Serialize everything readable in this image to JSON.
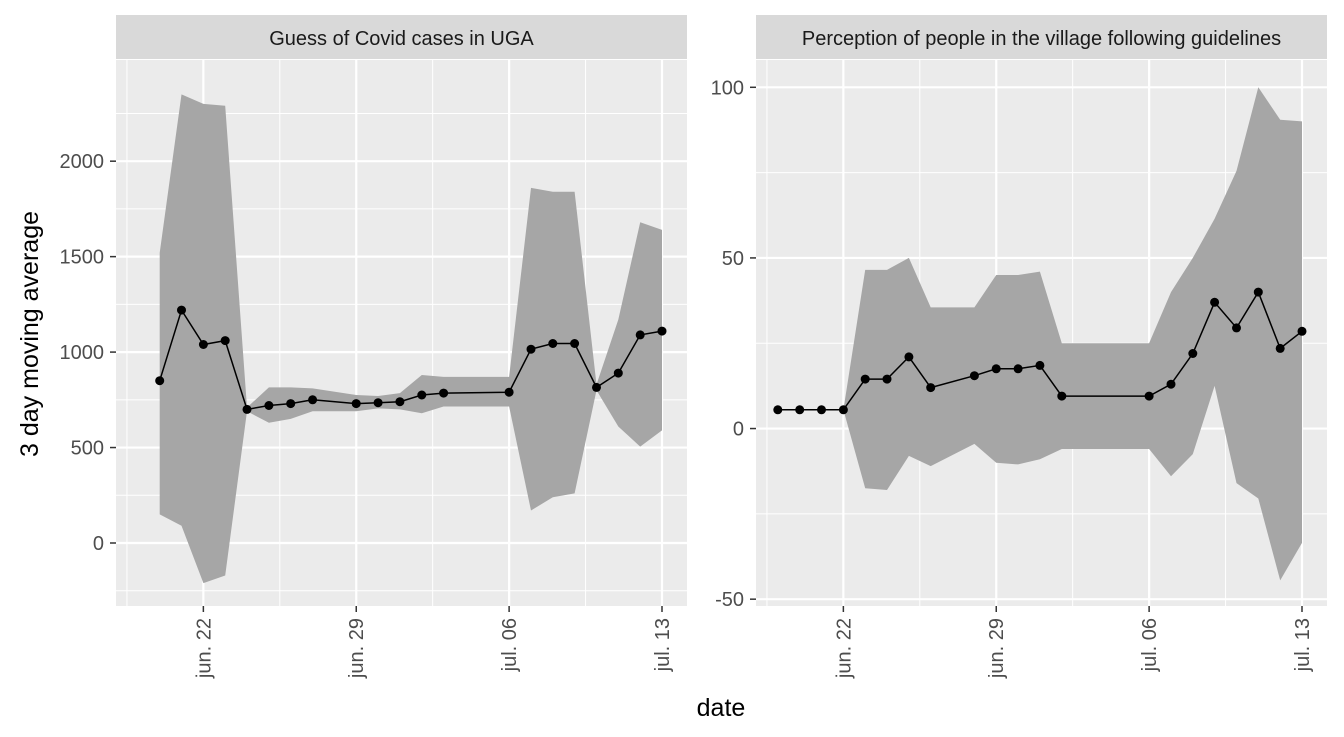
{
  "figure": {
    "xlabel": "date",
    "ylabel": "3 day moving average"
  },
  "colors": {
    "panel_bg": "#EBEBEB",
    "strip_bg": "#D9D9D9",
    "grid": "#FFFFFF",
    "ribbon": "#A6A6A6",
    "line": "#000000"
  },
  "chart_data": [
    {
      "type": "line",
      "title": "Guess of Covid cases in UGA",
      "xlabel": "date",
      "ylabel": "3 day moving average",
      "ribbon": true,
      "grid": true,
      "xlim": [
        "2020-06-18",
        "2020-07-13"
      ],
      "ylim": [
        -330,
        2530
      ],
      "x_ticks": [
        "2020-06-22",
        "2020-06-29",
        "2020-07-06",
        "2020-07-13"
      ],
      "x_tick_labels": [
        "jun. 22",
        "jun. 29",
        "jul. 06",
        "jul. 13"
      ],
      "y_ticks": [
        0,
        500,
        1000,
        1500,
        2000
      ],
      "y_tick_labels": [
        "0",
        "500",
        "1000",
        "1500",
        "2000"
      ],
      "series": [
        {
          "x": [
            "2020-06-20",
            "2020-06-21",
            "2020-06-22",
            "2020-06-23",
            "2020-06-24",
            "2020-06-25",
            "2020-06-26",
            "2020-06-27",
            "2020-06-29",
            "2020-06-30",
            "2020-07-01",
            "2020-07-02",
            "2020-07-03",
            "2020-07-06",
            "2020-07-07",
            "2020-07-08",
            "2020-07-09",
            "2020-07-10",
            "2020-07-11",
            "2020-07-12",
            "2020-07-13"
          ],
          "y": [
            850,
            1220,
            1040,
            1060,
            700,
            720,
            730,
            750,
            730,
            735,
            740,
            775,
            785,
            790,
            1015,
            1045,
            1045,
            815,
            890,
            1090,
            1110
          ],
          "lower": [
            150,
            90,
            -210,
            -170,
            690,
            630,
            650,
            690,
            690,
            705,
            700,
            680,
            715,
            715,
            170,
            240,
            260,
            800,
            610,
            505,
            590
          ],
          "upper": [
            1520,
            2350,
            2300,
            2290,
            710,
            815,
            815,
            810,
            775,
            770,
            785,
            880,
            870,
            870,
            1860,
            1840,
            1840,
            830,
            1170,
            1680,
            1640
          ]
        }
      ]
    },
    {
      "type": "line",
      "title": "Perception of people in the village following guidelines",
      "xlabel": "date",
      "ylabel": "3 day moving average",
      "ribbon": true,
      "grid": true,
      "xlim": [
        "2020-06-18",
        "2020-07-13"
      ],
      "ylim": [
        -52,
        108
      ],
      "x_ticks": [
        "2020-06-22",
        "2020-06-29",
        "2020-07-06",
        "2020-07-13"
      ],
      "x_tick_labels": [
        "jun. 22",
        "jun. 29",
        "jul. 06",
        "jul. 13"
      ],
      "y_ticks": [
        -50,
        0,
        50,
        100
      ],
      "y_tick_labels": [
        "-50",
        "0",
        "50",
        "100"
      ],
      "series": [
        {
          "x": [
            "2020-06-19",
            "2020-06-20",
            "2020-06-21",
            "2020-06-22",
            "2020-06-23",
            "2020-06-24",
            "2020-06-25",
            "2020-06-26",
            "2020-06-28",
            "2020-06-29",
            "2020-06-30",
            "2020-07-01",
            "2020-07-02",
            "2020-07-06",
            "2020-07-07",
            "2020-07-08",
            "2020-07-09",
            "2020-07-10",
            "2020-07-11",
            "2020-07-12",
            "2020-07-13"
          ],
          "y": [
            5.5,
            5.5,
            5.5,
            5.5,
            14.5,
            14.5,
            21,
            12,
            15.5,
            17.5,
            17.5,
            18.5,
            9.5,
            9.5,
            13,
            22,
            37,
            29.5,
            40,
            23.5,
            28.5
          ],
          "lower": [
            5.5,
            5.5,
            5.5,
            5.5,
            -17.5,
            -18,
            -8,
            -11,
            -4.5,
            -10,
            -10.5,
            -9,
            -6,
            -6,
            -14,
            -7.5,
            12.5,
            -16,
            -20.5,
            -44.5,
            -33.5
          ],
          "upper": [
            5.5,
            5.5,
            5.5,
            5.5,
            46.5,
            46.5,
            50,
            35.5,
            35.5,
            45,
            45,
            46,
            25,
            25,
            40,
            50,
            61.5,
            75.5,
            100,
            90.5,
            90
          ]
        }
      ]
    }
  ]
}
